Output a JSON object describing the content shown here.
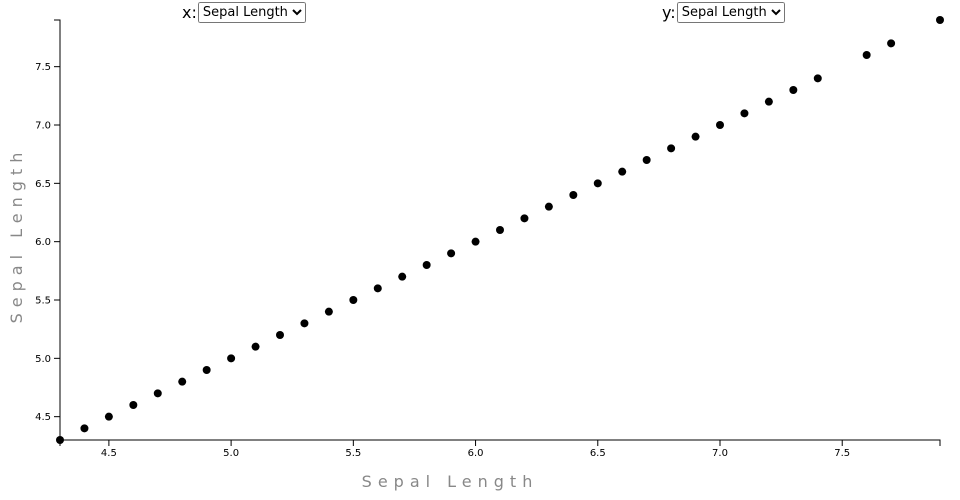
{
  "controls": [
    {
      "label": "x:",
      "selected": "Sepal Length"
    },
    {
      "label": "y:",
      "selected": "Sepal Length"
    }
  ],
  "chart_data": {
    "type": "scatter",
    "color": "#000000",
    "x_label": "Sepal Length",
    "y_label": "Sepal Length",
    "x": [
      4.3,
      4.4,
      4.5,
      4.6,
      4.7,
      4.8,
      4.9,
      5.0,
      5.1,
      5.2,
      5.3,
      5.4,
      5.5,
      5.6,
      5.7,
      5.8,
      5.9,
      6.0,
      6.1,
      6.2,
      6.3,
      6.4,
      6.5,
      6.6,
      6.7,
      6.8,
      6.9,
      7.0,
      7.1,
      7.2,
      7.3,
      7.4,
      7.6,
      7.7,
      7.9
    ],
    "values": [
      4.3,
      4.4,
      4.5,
      4.6,
      4.7,
      4.8,
      4.9,
      5.0,
      5.1,
      5.2,
      5.3,
      5.4,
      5.5,
      5.6,
      5.7,
      5.8,
      5.9,
      6.0,
      6.1,
      6.2,
      6.3,
      6.4,
      6.5,
      6.6,
      6.7,
      6.8,
      6.9,
      7.0,
      7.1,
      7.2,
      7.3,
      7.4,
      7.6,
      7.7,
      7.9
    ],
    "xlim": [
      4.3,
      7.9
    ],
    "ylim": [
      4.3,
      7.9
    ],
    "xticks": [
      4.5,
      {
        "value": 5,
        "label": "5.0"
      },
      5.5,
      {
        "value": 6,
        "label": "6.0"
      },
      6.5,
      {
        "value": 7,
        "label": "7.0"
      },
      7.5
    ],
    "yticks": [
      4.5,
      {
        "value": 5,
        "label": "5.0"
      },
      5.5,
      {
        "value": 6,
        "label": "6.0"
      },
      6.5,
      {
        "value": 7,
        "label": "7.0"
      },
      7.5
    ]
  }
}
